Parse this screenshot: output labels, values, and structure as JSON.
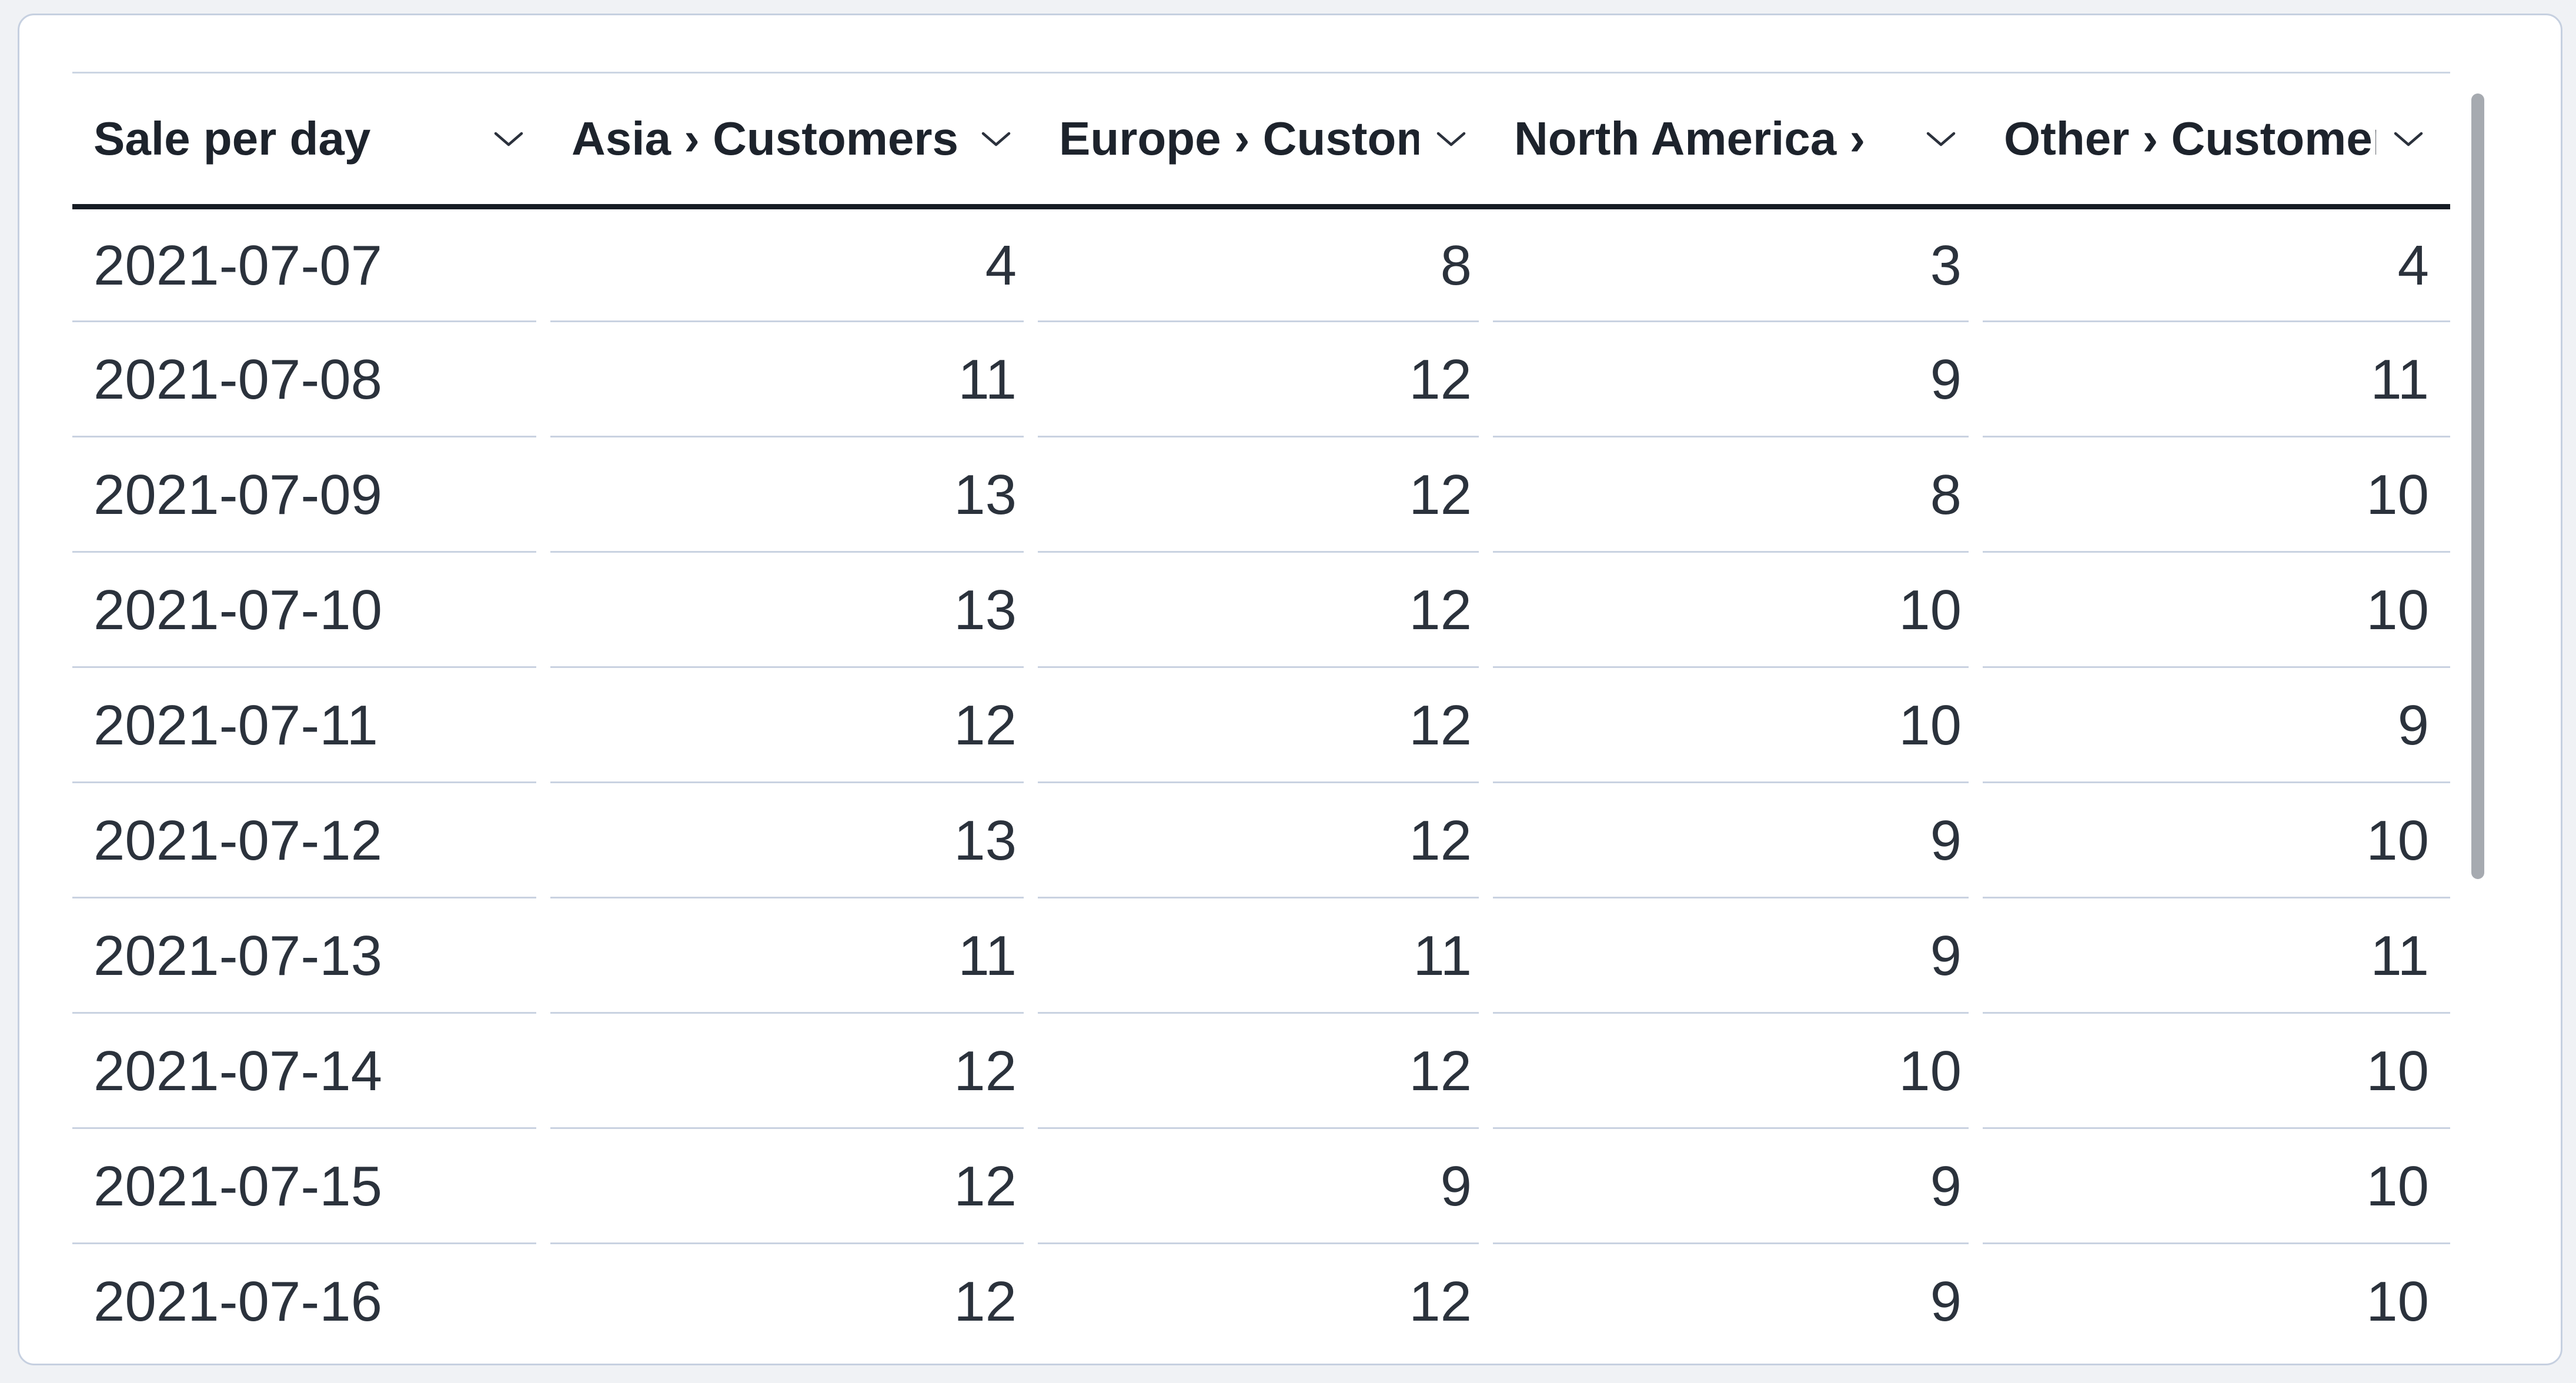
{
  "table": {
    "columns": [
      {
        "id": "date",
        "label": "Sale per day",
        "align": "left",
        "sort_icon": "chevron-down-icon"
      },
      {
        "id": "asia",
        "label": "Asia › Customers",
        "align": "right",
        "sort_icon": "chevron-down-icon"
      },
      {
        "id": "europe",
        "label": "Europe › Customers",
        "align": "right",
        "sort_icon": "chevron-down-icon"
      },
      {
        "id": "north_america",
        "label": "North America › ",
        "align": "right",
        "sort_icon": "chevron-down-icon"
      },
      {
        "id": "other",
        "label": "Other › Customers",
        "align": "right",
        "sort_icon": "chevron-down-icon"
      }
    ],
    "rows": [
      [
        "2021-07-07",
        "4",
        "8",
        "3",
        "4"
      ],
      [
        "2021-07-08",
        "11",
        "12",
        "9",
        "11"
      ],
      [
        "2021-07-09",
        "13",
        "12",
        "8",
        "10"
      ],
      [
        "2021-07-10",
        "13",
        "12",
        "10",
        "10"
      ],
      [
        "2021-07-11",
        "12",
        "12",
        "10",
        "9"
      ],
      [
        "2021-07-12",
        "13",
        "12",
        "9",
        "10"
      ],
      [
        "2021-07-13",
        "11",
        "11",
        "9",
        "11"
      ],
      [
        "2021-07-14",
        "12",
        "12",
        "10",
        "10"
      ],
      [
        "2021-07-15",
        "12",
        "9",
        "9",
        "10"
      ],
      [
        "2021-07-16",
        "12",
        "12",
        "9",
        "10"
      ]
    ]
  },
  "scrollbar": {
    "orientation": "vertical"
  },
  "colors": {
    "page_background": "#f0f2f5",
    "card_background": "#ffffff",
    "card_border": "#c6d0e0",
    "header_underline": "#161c24",
    "row_separator": "#c9d2e1",
    "header_text": "#1d232c",
    "cell_text": "#2b323c",
    "scrollbar_thumb": "#a6aab0"
  },
  "chart_data": {
    "type": "table",
    "title": "Sale per day",
    "categories": [
      "2021-07-07",
      "2021-07-08",
      "2021-07-09",
      "2021-07-10",
      "2021-07-11",
      "2021-07-12",
      "2021-07-13",
      "2021-07-14",
      "2021-07-15",
      "2021-07-16"
    ],
    "series": [
      {
        "name": "Asia › Customers",
        "values": [
          4,
          11,
          13,
          13,
          12,
          13,
          11,
          12,
          12,
          12
        ]
      },
      {
        "name": "Europe › Customers",
        "values": [
          8,
          12,
          12,
          12,
          12,
          12,
          11,
          12,
          9,
          12
        ]
      },
      {
        "name": "North America › Customers",
        "values": [
          3,
          9,
          8,
          10,
          10,
          9,
          9,
          10,
          9,
          9
        ]
      },
      {
        "name": "Other › Customers",
        "values": [
          4,
          11,
          10,
          10,
          9,
          10,
          11,
          10,
          10,
          10
        ]
      }
    ]
  }
}
